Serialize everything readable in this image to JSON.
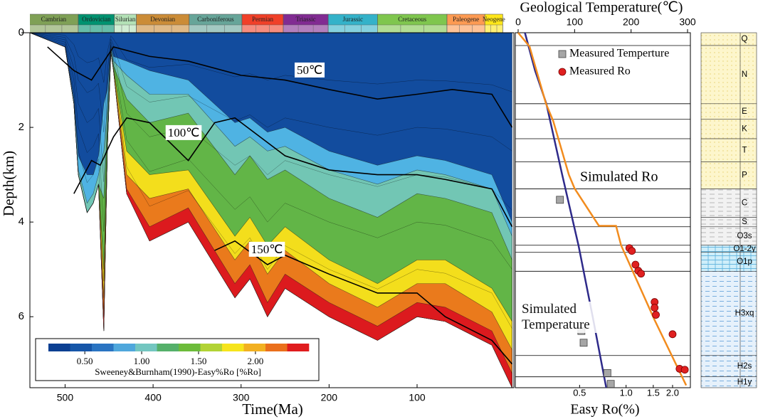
{
  "chart_data": [
    {
      "type": "burial",
      "xlabel": "Time(Ma)",
      "ylabel": "Depth(km)",
      "xlim": [
        540,
        -10
      ],
      "ylim": [
        0,
        7.5
      ],
      "xticks": [
        500,
        400,
        300,
        200,
        100
      ],
      "yticks": [
        0,
        2,
        4,
        6
      ],
      "periods": {
        "names": [
          "Cambrian",
          "Ordovician",
          "Silurian",
          "Devonian",
          "Carboniferous",
          "Permian",
          "Triassic",
          "Jurassic",
          "Cretaceous",
          "Paleogene",
          "Neogene"
        ],
        "bounds": [
          541,
          485,
          444,
          419,
          359,
          299,
          252,
          201,
          145,
          66,
          23,
          2.6
        ],
        "colors": [
          "#7fa056",
          "#009270",
          "#b3e1b6",
          "#cb8c37",
          "#67a599",
          "#f04028",
          "#812b92",
          "#34b2c9",
          "#7fc64e",
          "#fd9a52",
          "#ffe619"
        ]
      },
      "x": [
        540,
        500,
        490,
        485,
        475,
        468,
        462,
        456,
        452,
        448,
        445,
        430,
        404,
        360,
        307,
        290,
        270,
        250,
        200,
        145,
        100,
        68,
        15,
        -8
      ],
      "bottom": [
        0,
        0.3,
        1.5,
        3.0,
        3.8,
        3.6,
        3.2,
        6.3,
        2.5,
        0.4,
        0.8,
        3.4,
        4.4,
        4.0,
        5.6,
        5.2,
        6.0,
        5.4,
        6.0,
        6.5,
        6.0,
        6.1,
        6.6,
        7.5
      ],
      "zones": [
        {
          "color": "#124c9e"
        },
        {
          "color": "#4fb3e3",
          "top": [
            0,
            0.3,
            1.4,
            2.6,
            3.0,
            3.0,
            2.6,
            1.5,
            1.2,
            0.3,
            0.5,
            0.6,
            0.8,
            1.0,
            1.9,
            1.8,
            2.1,
            2.0,
            2.5,
            2.8,
            2.6,
            2.7,
            3.0,
            4.0
          ]
        },
        {
          "color": "#72c6b4",
          "top": [
            0,
            0.3,
            1.5,
            2.9,
            3.6,
            3.4,
            3.0,
            2.5,
            1.6,
            0.35,
            0.6,
            0.9,
            1.3,
            1.3,
            2.4,
            2.2,
            2.5,
            2.4,
            2.9,
            3.2,
            2.9,
            3.0,
            3.3,
            4.3
          ]
        },
        {
          "color": "#62b547",
          "top": [
            0,
            0.3,
            1.5,
            3.0,
            3.8,
            3.6,
            3.2,
            3.5,
            2.0,
            0.4,
            0.7,
            1.4,
            1.9,
            1.7,
            3.0,
            2.6,
            3.1,
            2.9,
            3.5,
            3.9,
            3.4,
            3.5,
            3.8,
            4.8
          ]
        },
        {
          "color": "#f3de1c",
          "top": [
            0,
            0.3,
            1.5,
            3.0,
            3.8,
            3.6,
            3.2,
            5.0,
            2.5,
            0.4,
            0.75,
            2.5,
            3.0,
            2.9,
            4.3,
            3.9,
            4.5,
            4.1,
            4.8,
            5.3,
            4.8,
            4.8,
            5.4,
            6.1
          ]
        },
        {
          "color": "#ea7a1c",
          "top": [
            0,
            0.3,
            1.5,
            3.0,
            3.8,
            3.6,
            3.2,
            5.6,
            2.5,
            0.4,
            0.78,
            3.0,
            3.5,
            3.3,
            4.8,
            4.4,
            5.1,
            4.6,
            5.3,
            5.8,
            5.3,
            5.3,
            5.9,
            6.7
          ]
        },
        {
          "color": "#dc1a1e",
          "top": [
            0,
            0.3,
            1.5,
            3.0,
            3.8,
            3.6,
            3.2,
            6.0,
            2.5,
            0.4,
            0.8,
            3.3,
            4.1,
            3.7,
            5.3,
            4.9,
            5.7,
            5.1,
            5.7,
            6.2,
            5.7,
            5.8,
            6.3,
            7.2
          ]
        }
      ],
      "isotherms": [
        {
          "name": "50℃",
          "x": [
            520,
            490,
            470,
            445,
            404,
            360,
            300,
            250,
            200,
            145,
            100,
            60,
            15,
            -8
          ],
          "values": [
            0.3,
            0.8,
            1.0,
            0.3,
            0.5,
            0.6,
            0.9,
            1.0,
            1.2,
            1.4,
            1.3,
            1.2,
            1.3,
            2.0
          ]
        },
        {
          "name": "100℃",
          "x": [
            490,
            470,
            460,
            445,
            430,
            404,
            360,
            330,
            307,
            250,
            200,
            145,
            100,
            68,
            15,
            -8
          ],
          "values": [
            3.4,
            2.7,
            2.8,
            2.2,
            1.8,
            1.9,
            2.7,
            1.9,
            1.8,
            2.6,
            2.9,
            3.0,
            3.0,
            3.1,
            3.3,
            4.1
          ]
        },
        {
          "name": "150℃",
          "x": [
            330,
            307,
            270,
            250,
            200,
            145,
            100,
            68,
            15,
            -8
          ],
          "values": [
            4.6,
            4.4,
            4.9,
            4.7,
            5.1,
            5.5,
            5.5,
            6.0,
            6.5,
            7.0
          ]
        }
      ],
      "colorbar": {
        "colors": [
          "#0b3f92",
          "#1656a8",
          "#2a74c2",
          "#4fa7dc",
          "#73c6c0",
          "#55b06a",
          "#6cbb3a",
          "#b2d335",
          "#f6e41c",
          "#f2b021",
          "#ea6f1c",
          "#e01c1e"
        ],
        "clim": [
          0.18,
          2.47
        ],
        "ticks": [
          {
            "value": 0.5,
            "label": "0.50"
          },
          {
            "value": 1,
            "label": "1.00"
          },
          {
            "value": 1.5,
            "label": "1.50"
          },
          {
            "value": 2,
            "label": "2.00"
          }
        ],
        "label": "Sweeney&Burnham(1990)-Easy%Ro [%Ro]"
      }
    },
    {
      "type": "profile",
      "title": "Geological Temperature(℃)",
      "xlabel": "Easy Ro(%)",
      "xlim": [
        0,
        300
      ],
      "xticks": [
        0,
        100,
        200,
        300
      ],
      "ro_lim": [
        0.2,
        2.5
      ],
      "ro_log": true,
      "ro_ticks": [
        0.5,
        {
          "value": 1,
          "label": "1.0"
        },
        1.5,
        {
          "value": 2,
          "label": "2.0"
        }
      ],
      "ylim": [
        0,
        7.5
      ],
      "series": [
        {
          "name": "Simulated Temperature",
          "color": "#2e2a8a",
          "axis": "temperature",
          "depth": [
            0,
            0.8,
            1.5,
            3.0,
            4.5,
            6.0,
            7.5
          ],
          "values": [
            12,
            30,
            50,
            78,
            107,
            132,
            156
          ]
        },
        {
          "name": "Simulated Ro",
          "color": "#f28c1e",
          "axis": "ro",
          "depth": [
            0,
            0.29,
            1.5,
            1.86,
            3.0,
            3.29,
            4.08,
            4.08,
            4.49,
            6.07,
            7.45
          ],
          "values": [
            0.2,
            0.237,
            0.303,
            0.337,
            0.426,
            0.464,
            0.667,
            0.861,
            0.928,
            1.53,
            2.45
          ]
        },
        {
          "name": "Measured Temperture",
          "color": "#a6a6a6",
          "axis": "temperature",
          "marker": "square",
          "depth": [
            3.53,
            6.3,
            6.55,
            7.19,
            7.42
          ],
          "values": [
            74,
            112,
            116,
            158,
            164
          ]
        },
        {
          "name": "Measured Ro",
          "color": "#e02020",
          "axis": "ro",
          "marker": "circle",
          "depth": [
            4.55,
            4.61,
            4.9,
            5.03,
            5.09,
            5.69,
            5.81,
            5.96,
            6.37,
            7.1,
            7.12
          ],
          "values": [
            1.05,
            1.09,
            1.15,
            1.2,
            1.25,
            1.53,
            1.53,
            1.56,
            2.0,
            2.22,
            2.4
          ]
        }
      ],
      "formations": {
        "names": [
          "Q",
          "N",
          "E",
          "K",
          "T",
          "P",
          "C",
          "S",
          "O3s",
          "O1-2y",
          "O1p",
          "H3xq",
          "H2s",
          "H1y"
        ],
        "tops": [
          0,
          0.27,
          1.5,
          1.83,
          2.24,
          2.73,
          3.3,
          3.9,
          4.1,
          4.49,
          4.64,
          5.04,
          6.82,
          7.27
        ],
        "colors": [
          "url(#dots)",
          "url(#dots)",
          "url(#dots)",
          "url(#dots)",
          "url(#dots)",
          "url(#dots)",
          "url(#dash)",
          "url(#dash)",
          "url(#dash)",
          "url(#brick)",
          "url(#brick)",
          "url(#bluedash)",
          "url(#bluedash)",
          "url(#bluedash)"
        ]
      }
    }
  ]
}
